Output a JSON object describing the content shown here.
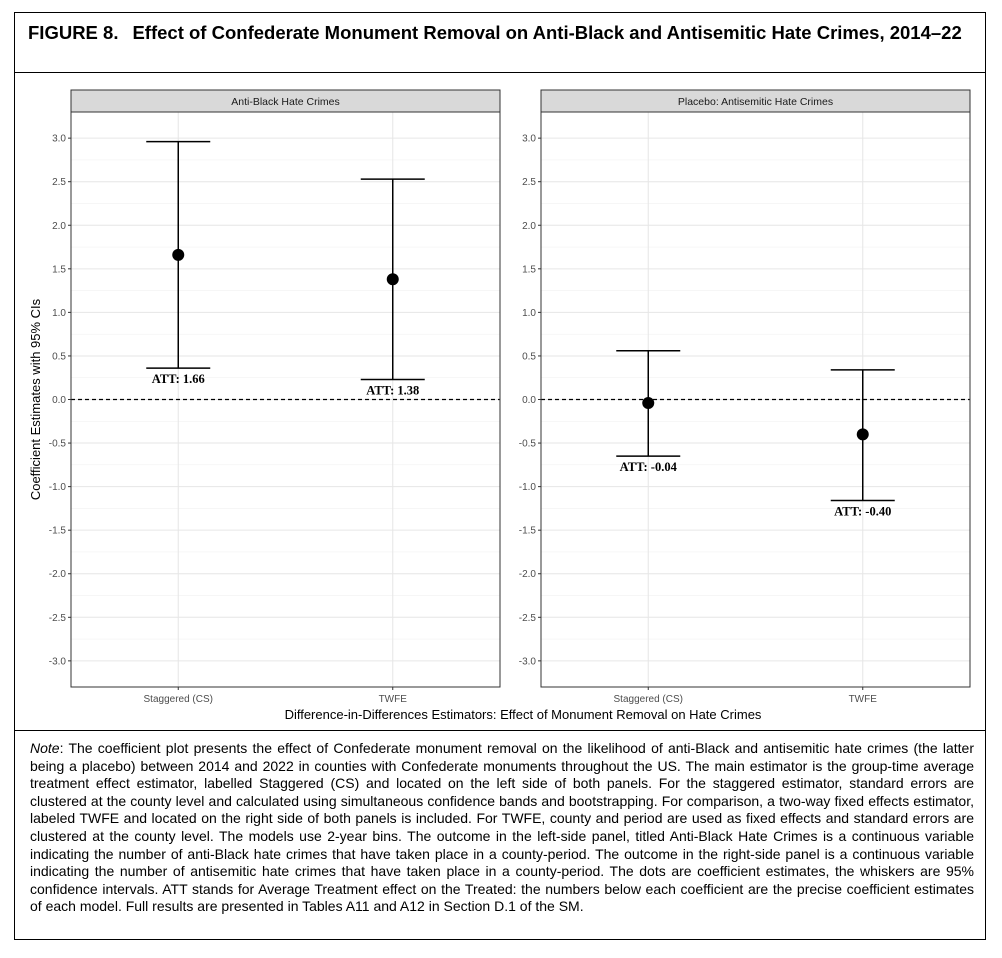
{
  "figure": {
    "label": "FIGURE 8.",
    "title": "Effect of Confederate Monument Removal on Anti-Black and Antisemitic Hate Crimes, 2014–22"
  },
  "chart_data": {
    "type": "scatter",
    "subtype": "coefficient-plot-with-error-bars",
    "ylabel": "Coefficient Estimates with 95% CIs",
    "xlabel": "Difference-in-Differences Estimators: Effect of Monument Removal on Hate Crimes",
    "ylim": [
      -3.3,
      3.3
    ],
    "yticks": [
      3.0,
      2.5,
      2.0,
      1.5,
      1.0,
      0.5,
      0.0,
      -0.5,
      -1.0,
      -1.5,
      -2.0,
      -2.5,
      -3.0
    ],
    "ytick_labels": [
      "3.0",
      "2.5",
      "2.0",
      "1.5",
      "1.0",
      "0.5",
      "0.0",
      "-0.5",
      "-1.0",
      "-1.5",
      "-2.0",
      "-2.5",
      "-3.0"
    ],
    "categories": [
      "Staggered (CS)",
      "TWFE"
    ],
    "reference_line": 0,
    "grid": true,
    "panels": [
      {
        "title": "Anti-Black Hate Crimes",
        "points": [
          {
            "category": "Staggered (CS)",
            "estimate": 1.66,
            "ci_low": 0.36,
            "ci_high": 2.96,
            "label": "ATT: 1.66"
          },
          {
            "category": "TWFE",
            "estimate": 1.38,
            "ci_low": 0.23,
            "ci_high": 2.53,
            "label": "ATT: 1.38"
          }
        ]
      },
      {
        "title": "Placebo: Antisemitic Hate Crimes",
        "points": [
          {
            "category": "Staggered (CS)",
            "estimate": -0.04,
            "ci_low": -0.65,
            "ci_high": 0.56,
            "label": "ATT: -0.04"
          },
          {
            "category": "TWFE",
            "estimate": -0.4,
            "ci_low": -1.16,
            "ci_high": 0.34,
            "label": "ATT: -0.40"
          }
        ]
      }
    ]
  },
  "note": {
    "label": "Note",
    "text": ": The coefficient plot presents the effect of Confederate monument removal on the likelihood of anti-Black and antisemitic hate crimes (the latter being a placebo) between 2014 and 2022 in counties with Confederate monuments throughout the US. The main estimator is the group-time average treatment effect estimator, labelled Staggered (CS) and located on the left side of both panels. For the staggered estimator, standard errors are clustered at the county level and calculated using simultaneous confidence bands and bootstrapping. For comparison, a two-way fixed effects estimator, labeled TWFE and located on the right side of both panels is included. For TWFE, county and period are used as fixed effects and standard errors are clustered at the county level. The models use 2-year bins. The outcome in the left-side panel, titled Anti-Black Hate Crimes is a continuous variable indicating the number of anti-Black hate crimes that have taken place in a county-period. The outcome in the right-side panel is a continuous variable indicating the number of antisemitic hate crimes that have taken place in a county-period. The dots are coefficient estimates, the whiskers are 95% confidence intervals. ATT stands for Average Treatment effect on the Treated: the numbers below each coefficient are the precise coefficient estimates of each model. Full results are presented in Tables A11 and A12 in Section D.1 of the SM."
  }
}
